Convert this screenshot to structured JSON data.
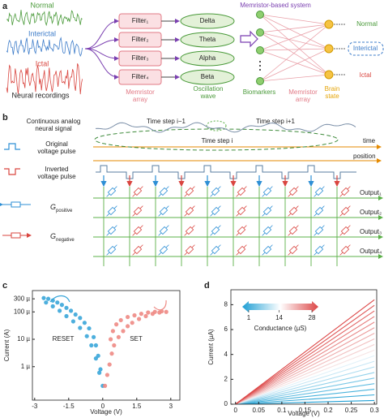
{
  "panel_a": {
    "label": "a",
    "signals": [
      "Normal",
      "Interictal",
      "Ictal"
    ],
    "recordings_caption": "Neural recordings",
    "filters": [
      "Filter₁",
      "Filter₂",
      "Filter₃",
      "Filter₄"
    ],
    "filter_caption": [
      "Memristor",
      "array"
    ],
    "bands": [
      "Delta",
      "Theta",
      "Alpha",
      "Beta"
    ],
    "bands_caption": [
      "Oscillation",
      "wave"
    ],
    "system_title": "Memristor-based system",
    "biomarkers_caption": "Biomarkers",
    "array_caption": [
      "Memristor",
      "array"
    ],
    "state_caption": [
      "Brain",
      "state"
    ],
    "states": [
      "Normal",
      "Interictal",
      "Ictal"
    ]
  },
  "panel_b": {
    "label": "b",
    "signal_caption": [
      "Continuous analog",
      "neural signal"
    ],
    "original_pulse": [
      "Original",
      "voltage pulse"
    ],
    "inverted_pulse": [
      "Inverted",
      "voltage pulse"
    ],
    "g_positive": {
      "symbol": "G",
      "subscript": "positive"
    },
    "g_negative": {
      "symbol": "G",
      "subscript": "negative"
    },
    "time_steps": [
      "Time step i−1",
      "Time step i",
      "Time step i+1"
    ],
    "time_axis": "time",
    "position_axis": "position",
    "outputs": [
      "Output₁",
      "Output₂",
      "Output₃",
      "Output₄"
    ]
  },
  "chart_data": [
    {
      "type": "scatter",
      "panel": "c",
      "x_label": "Voltage (V)",
      "y_label": "Current (A)",
      "log_y": true,
      "xlim": [
        -3.1,
        3.4
      ],
      "xticks": [
        -3,
        -1.5,
        0,
        1.5,
        3
      ],
      "ylim": [
        6e-08,
        0.0006
      ],
      "yticks": [
        {
          "value": 1e-06,
          "label": "1 µ"
        },
        {
          "value": 1e-05,
          "label": "10 µ"
        },
        {
          "value": 0.0001,
          "label": "100 µ"
        },
        {
          "value": 0.0003,
          "label": "300 µ"
        }
      ],
      "series": [
        {
          "name": "RESET",
          "color": "#3aa6d9",
          "x": [
            -2.6,
            -2.4,
            -2.2,
            -2.0,
            -1.8,
            -1.6,
            -1.4,
            -1.2,
            -1.0,
            -0.8,
            -0.6,
            -0.4,
            -0.3,
            -0.2,
            -0.1,
            0,
            -2.5,
            -2.2,
            -1.9,
            -1.6,
            -1.3,
            -1.0,
            -0.7,
            -0.5,
            -0.3,
            -0.15
          ],
          "values": [
            0.00032,
            0.0003,
            0.00026,
            0.00022,
            0.00018,
            0.00014,
            0.00011,
            8e-05,
            6e-05,
            4e-05,
            2.5e-05,
            1.2e-05,
            6e-06,
            2.5e-06,
            8e-07,
            2e-07,
            0.00022,
            0.00016,
            0.00011,
            7e-05,
            4.5e-05,
            2.6e-05,
            1.3e-05,
            6e-06,
            2e-06,
            6e-07
          ]
        },
        {
          "name": "SET",
          "color": "#ee8a84",
          "x": [
            0.1,
            0.2,
            0.3,
            0.4,
            0.5,
            0.7,
            0.9,
            1.1,
            1.3,
            1.6,
            1.9,
            2.2,
            2.5,
            2.8,
            2.6,
            2.3,
            2.0,
            1.7,
            1.4,
            1.1,
            0.8,
            0.6,
            0.45,
            0.35
          ],
          "values": [
            2e-07,
            5e-07,
            1.2e-06,
            3e-06,
            6e-06,
            1.2e-05,
            2e-05,
            3e-05,
            4e-05,
            5.5e-05,
            7e-05,
            8.5e-05,
            9.5e-05,
            0.0001,
            0.000105,
            0.0001,
            9.5e-05,
            8.5e-05,
            7.5e-05,
            6.5e-05,
            5e-05,
            3.5e-05,
            2e-05,
            1e-05
          ]
        }
      ]
    },
    {
      "type": "line",
      "panel": "d",
      "x_label": "Voltage (V)",
      "y_label": "Current (µA)",
      "xlim": [
        -0.01,
        0.305
      ],
      "xticks": [
        0,
        0.05,
        0.1,
        0.15,
        0.2,
        0.25,
        0.3
      ],
      "ylim": [
        0,
        9.2
      ],
      "yticks": [
        0,
        2,
        4,
        6,
        8
      ],
      "x": [
        0,
        0.3
      ],
      "series": [
        {
          "color": "#1f9fd4",
          "values": [
            0,
            0.3
          ]
        },
        {
          "color": "#34a9d8",
          "values": [
            0,
            0.75
          ]
        },
        {
          "color": "#4ab3dc",
          "values": [
            0,
            1.2
          ]
        },
        {
          "color": "#62bde1",
          "values": [
            0,
            1.65
          ]
        },
        {
          "color": "#7ac7e6",
          "values": [
            0,
            2.1
          ]
        },
        {
          "color": "#93d2eb",
          "values": [
            0,
            2.55
          ]
        },
        {
          "color": "#addcf0",
          "values": [
            0,
            3.0
          ]
        },
        {
          "color": "#c7e7f5",
          "values": [
            0,
            3.45
          ]
        },
        {
          "color": "#e1f1f9",
          "values": [
            0,
            3.9
          ]
        },
        {
          "color": "#f6e4e4",
          "values": [
            0,
            4.35
          ]
        },
        {
          "color": "#f4d2d2",
          "values": [
            0,
            4.8
          ]
        },
        {
          "color": "#f1c0c0",
          "values": [
            0,
            5.25
          ]
        },
        {
          "color": "#eeadad",
          "values": [
            0,
            5.7
          ]
        },
        {
          "color": "#eb9b9b",
          "values": [
            0,
            6.15
          ]
        },
        {
          "color": "#e88989",
          "values": [
            0,
            6.6
          ]
        },
        {
          "color": "#e57777",
          "values": [
            0,
            7.05
          ]
        },
        {
          "color": "#e26666",
          "values": [
            0,
            7.5
          ]
        },
        {
          "color": "#df5656",
          "values": [
            0,
            7.95
          ]
        },
        {
          "color": "#dc4747",
          "values": [
            0,
            8.4
          ]
        }
      ],
      "colorbar": {
        "label": "Conductance (µS)",
        "ticks": [
          1,
          14,
          28
        ],
        "colors": [
          "#1f9fd4",
          "#ffffff",
          "#dc4747"
        ]
      }
    }
  ]
}
